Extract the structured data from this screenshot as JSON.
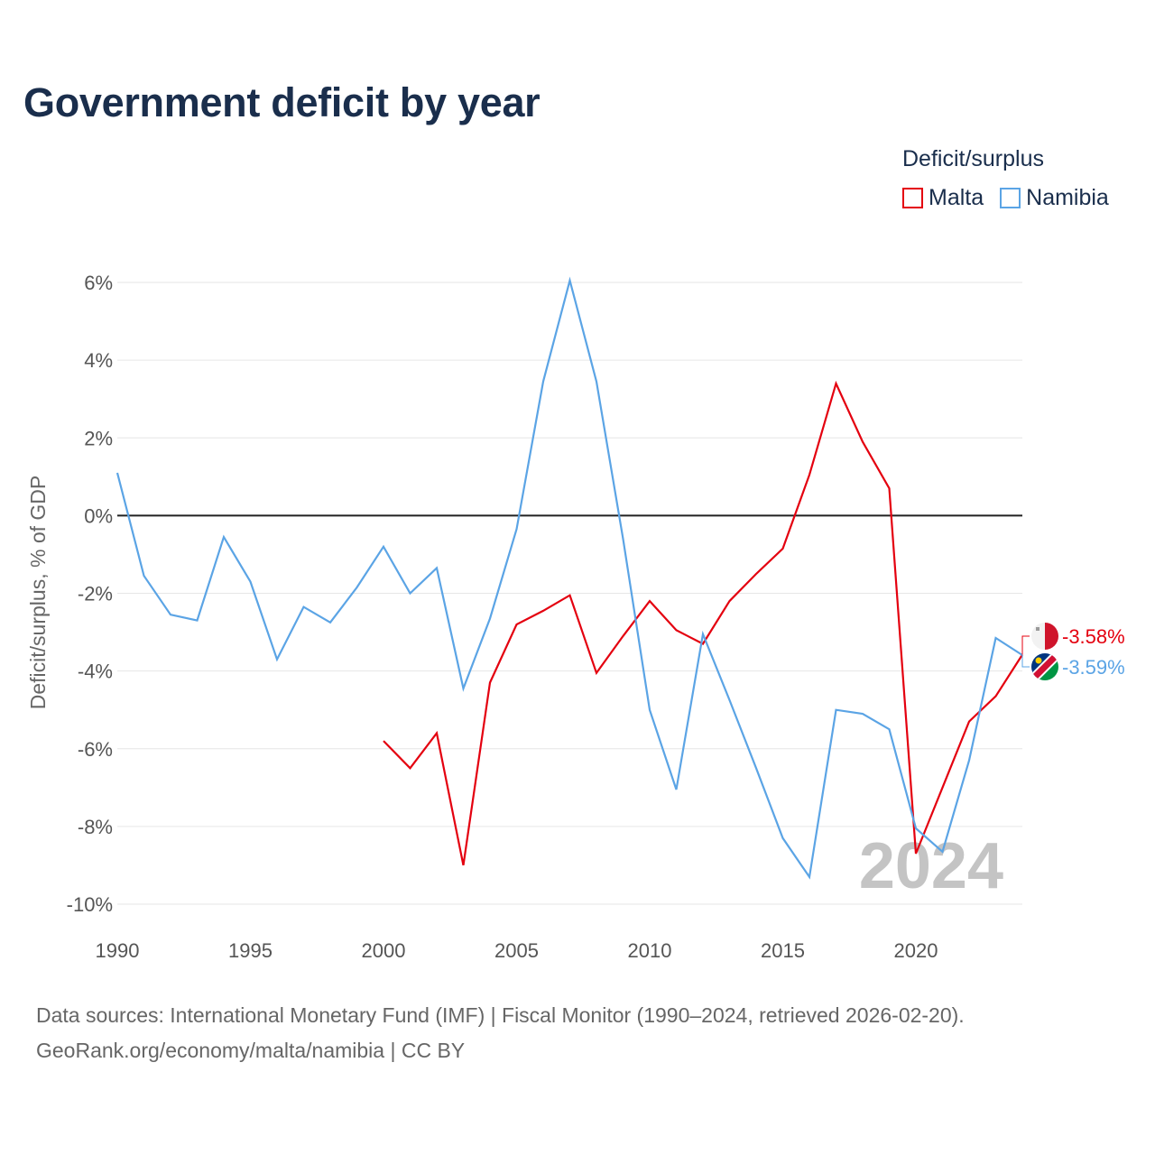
{
  "title": "Government deficit by year",
  "legend": {
    "title": "Deficit/surplus"
  },
  "chart_data": {
    "type": "line",
    "ylabel": "Deficit/surplus, % of GDP",
    "xlabel": "",
    "xlim": [
      1990,
      2024
    ],
    "ylim": [
      -10,
      6
    ],
    "x_ticks": [
      "1990",
      "1995",
      "2000",
      "2005",
      "2010",
      "2015",
      "2020"
    ],
    "x_tick_values": [
      1990,
      1995,
      2000,
      2005,
      2010,
      2015,
      2020
    ],
    "y_ticks": [
      "6%",
      "4%",
      "2%",
      "0%",
      "-2%",
      "-4%",
      "-6%",
      "-8%",
      "-10%"
    ],
    "y_tick_values": [
      6,
      4,
      2,
      0,
      -2,
      -4,
      -6,
      -8,
      -10
    ],
    "watermark_year": "2024",
    "zero_line": true,
    "grid": true,
    "series": [
      {
        "name": "Malta",
        "color": "#e4000f",
        "end_label": "-3.58%",
        "x": [
          2000,
          2001,
          2002,
          2003,
          2004,
          2005,
          2006,
          2007,
          2008,
          2009,
          2010,
          2011,
          2012,
          2013,
          2014,
          2015,
          2016,
          2017,
          2018,
          2019,
          2020,
          2021,
          2022,
          2023,
          2024
        ],
        "values": [
          -5.8,
          -6.5,
          -5.6,
          -9.0,
          -4.3,
          -2.8,
          -2.45,
          -2.05,
          -4.05,
          -3.1,
          -2.2,
          -2.95,
          -3.3,
          -2.2,
          -1.5,
          -0.85,
          1.05,
          3.4,
          1.9,
          0.7,
          -8.7,
          -7.0,
          -5.3,
          -4.65,
          -3.58
        ]
      },
      {
        "name": "Namibia",
        "color": "#5ba4e5",
        "end_label": "-3.59%",
        "x": [
          1990,
          1991,
          1992,
          1993,
          1994,
          1995,
          1996,
          1997,
          1998,
          1999,
          2000,
          2001,
          2002,
          2003,
          2004,
          2005,
          2006,
          2007,
          2008,
          2009,
          2010,
          2011,
          2012,
          2013,
          2014,
          2015,
          2016,
          2017,
          2018,
          2019,
          2020,
          2021,
          2022,
          2023,
          2024
        ],
        "values": [
          1.1,
          -1.55,
          -2.55,
          -2.7,
          -0.55,
          -1.7,
          -3.7,
          -2.35,
          -2.75,
          -1.85,
          -0.8,
          -2.0,
          -1.35,
          -4.45,
          -2.65,
          -0.35,
          3.45,
          6.05,
          3.45,
          -0.6,
          -5.0,
          -7.05,
          -3.05,
          -4.75,
          -6.5,
          -8.3,
          -9.3,
          -5.0,
          -5.1,
          -5.5,
          -8.05,
          -8.65,
          -6.3,
          -3.15,
          -3.59
        ]
      }
    ]
  },
  "source": {
    "line1": "Data sources: International Monetary Fund (IMF) | Fiscal Monitor (1990–2024, retrieved 2026-02-20).",
    "link": "GeoRank.org/economy/malta/namibia",
    "license": " | CC BY"
  }
}
